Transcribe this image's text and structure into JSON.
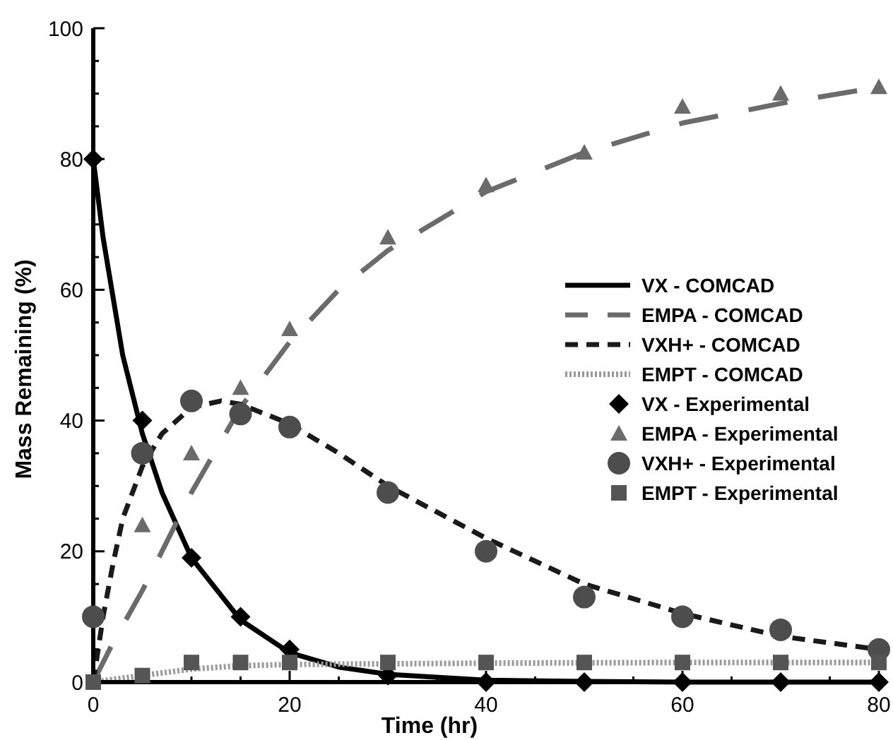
{
  "chart_data": {
    "type": "line",
    "xlabel": "Time (hr)",
    "ylabel": "Mass Remaining (%)",
    "xlim": [
      0,
      80
    ],
    "ylim": [
      0,
      100
    ],
    "xticks": [
      0,
      {
        "value": 5,
        "label": null
      },
      {
        "value": 10,
        "label": null
      },
      {
        "value": 15,
        "label": null
      },
      20,
      {
        "value": 25,
        "label": null
      },
      {
        "value": 30,
        "label": null
      },
      {
        "value": 35,
        "label": null
      },
      40,
      {
        "value": 45,
        "label": null
      },
      {
        "value": 50,
        "label": null
      },
      {
        "value": 55,
        "label": null
      },
      60,
      {
        "value": 65,
        "label": null
      },
      {
        "value": 70,
        "label": null
      },
      {
        "value": 75,
        "label": null
      },
      80
    ],
    "yticks": [
      0,
      {
        "value": 5,
        "label": null
      },
      {
        "value": 10,
        "label": null
      },
      {
        "value": 15,
        "label": null
      },
      20,
      {
        "value": 25,
        "label": null
      },
      {
        "value": 30,
        "label": null
      },
      {
        "value": 35,
        "label": null
      },
      40,
      {
        "value": 45,
        "label": null
      },
      {
        "value": 50,
        "label": null
      },
      {
        "value": 55,
        "label": null
      },
      60,
      {
        "value": 65,
        "label": null
      },
      {
        "value": 70,
        "label": null
      },
      {
        "value": 75,
        "label": null
      },
      80,
      {
        "value": 85,
        "label": null
      },
      {
        "value": 90,
        "label": null
      },
      {
        "value": 95,
        "label": null
      },
      100
    ],
    "grid": false,
    "legend": "right",
    "series": [
      {
        "name": "VX - COMCAD",
        "line_style": "solid",
        "marker": "none",
        "color": "#000000",
        "x": [
          0,
          1,
          2,
          3,
          5,
          7,
          10,
          15,
          20,
          25,
          30,
          40,
          50,
          60,
          80
        ],
        "values": [
          80,
          68,
          59,
          50,
          38,
          29,
          19,
          9.5,
          4.5,
          2.3,
          1.2,
          0.3,
          0.1,
          0,
          0
        ]
      },
      {
        "name": "EMPA - COMCAD",
        "line_style": "longdash",
        "marker": "none",
        "color": "#6b6b6b",
        "x": [
          0,
          2,
          5,
          8,
          10,
          15,
          20,
          25,
          30,
          40,
          50,
          60,
          70,
          80
        ],
        "values": [
          0,
          6,
          14,
          23,
          29,
          42,
          52,
          60,
          66,
          75,
          81,
          85.5,
          88.5,
          91
        ]
      },
      {
        "name": "VXH+ - COMCAD",
        "line_style": "dashed",
        "marker": "none",
        "color": "#1a1a1a",
        "x": [
          0,
          1,
          2,
          3,
          5,
          7,
          10,
          13,
          15,
          20,
          25,
          30,
          40,
          50,
          60,
          70,
          80
        ],
        "values": [
          0,
          10,
          18,
          25,
          33,
          38,
          42,
          43,
          42.5,
          39.5,
          35,
          30,
          22,
          15,
          10.5,
          7,
          5
        ]
      },
      {
        "name": "EMPT - COMCAD",
        "line_style": "dotted",
        "marker": "none",
        "color": "#999999",
        "x": [
          0,
          5,
          10,
          15,
          20,
          30,
          40,
          60,
          80
        ],
        "values": [
          0,
          1,
          2,
          2.5,
          2.7,
          2.8,
          2.9,
          3,
          3
        ]
      },
      {
        "name": "VX - Experimental",
        "type": "scatter",
        "marker": "diamond",
        "color": "#000000",
        "x": [
          0,
          5,
          10,
          15,
          20,
          30,
          40,
          50,
          60,
          70,
          80
        ],
        "values": [
          80,
          40,
          19,
          10,
          5,
          1,
          0,
          0,
          0,
          0,
          0
        ]
      },
      {
        "name": "EMPA - Experimental",
        "type": "scatter",
        "marker": "triangle",
        "color": "#6b6b6b",
        "x": [
          5,
          10,
          15,
          20,
          30,
          40,
          50,
          60,
          70,
          80
        ],
        "values": [
          24,
          35,
          45,
          54,
          68,
          76,
          81,
          88,
          90,
          91
        ]
      },
      {
        "name": "VXH+ - Experimental",
        "type": "scatter",
        "marker": "circle",
        "color": "#4d4d4d",
        "x": [
          0,
          5,
          10,
          15,
          20,
          30,
          40,
          50,
          60,
          70,
          80
        ],
        "values": [
          10,
          35,
          43,
          41,
          39,
          29,
          20,
          13,
          10,
          8,
          5
        ]
      },
      {
        "name": "EMPT - Experimental",
        "type": "scatter",
        "marker": "square",
        "color": "#555555",
        "x": [
          0,
          5,
          10,
          15,
          20,
          30,
          40,
          50,
          60,
          70,
          80
        ],
        "values": [
          0,
          1,
          3,
          3,
          3,
          3,
          3,
          3,
          3,
          3,
          3
        ]
      }
    ]
  }
}
